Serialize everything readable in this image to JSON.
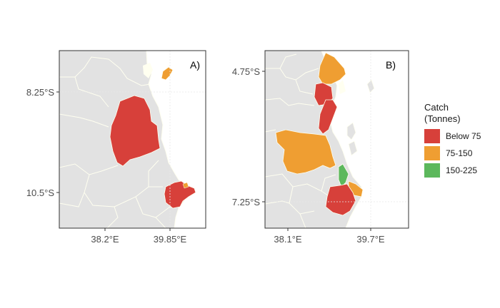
{
  "panels": [
    {
      "tag": "A)",
      "x_ticks": [
        "38.2°E",
        "39.85°E"
      ],
      "y_ticks": [
        "8.25°S",
        "10.5°S"
      ]
    },
    {
      "tag": "B)",
      "x_ticks": [
        "38.1°E",
        "39.7°E"
      ],
      "y_ticks": [
        "4.75°S",
        "7.25°S"
      ]
    }
  ],
  "legend": {
    "title_line1": "Catch",
    "title_line2": "(Tonnes)",
    "items": [
      {
        "label": "Below 75",
        "color": "#d7403a"
      },
      {
        "label": "75-150",
        "color": "#ef9e32"
      },
      {
        "label": "150-225",
        "color": "#5cb85c"
      }
    ]
  },
  "colors": {
    "land": "#e2e2e2",
    "border": "#fffff0",
    "sea": "#ffffff",
    "frame": "#333333"
  }
}
